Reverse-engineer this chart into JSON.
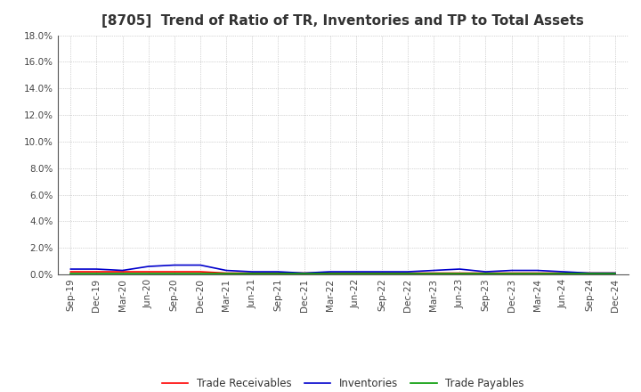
{
  "title": "[8705]  Trend of Ratio of TR, Inventories and TP to Total Assets",
  "x_labels": [
    "Sep-19",
    "Dec-19",
    "Mar-20",
    "Jun-20",
    "Sep-20",
    "Dec-20",
    "Mar-21",
    "Jun-21",
    "Sep-21",
    "Dec-21",
    "Mar-22",
    "Jun-22",
    "Sep-22",
    "Dec-22",
    "Mar-23",
    "Jun-23",
    "Sep-23",
    "Dec-23",
    "Mar-24",
    "Jun-24",
    "Sep-24",
    "Dec-24"
  ],
  "trade_receivables": [
    0.002,
    0.002,
    0.002,
    0.002,
    0.002,
    0.002,
    0.001,
    0.001,
    0.001,
    0.001,
    0.001,
    0.001,
    0.001,
    0.001,
    0.001,
    0.001,
    0.001,
    0.001,
    0.001,
    0.001,
    0.001,
    0.001
  ],
  "inventories": [
    0.004,
    0.004,
    0.003,
    0.006,
    0.007,
    0.007,
    0.003,
    0.002,
    0.002,
    0.001,
    0.002,
    0.002,
    0.002,
    0.002,
    0.003,
    0.004,
    0.002,
    0.003,
    0.003,
    0.002,
    0.001,
    0.001
  ],
  "trade_payables": [
    0.0005,
    0.0005,
    0.0005,
    0.0005,
    0.0005,
    0.0005,
    0.0005,
    0.0005,
    0.0005,
    0.0005,
    0.0005,
    0.0005,
    0.0005,
    0.0005,
    0.0005,
    0.0005,
    0.0005,
    0.0005,
    0.0005,
    0.0005,
    0.0005,
    0.0005
  ],
  "tr_color": "#FF0000",
  "inv_color": "#0000CC",
  "tp_color": "#009900",
  "ylim": [
    0.0,
    0.18
  ],
  "yticks": [
    0.0,
    0.02,
    0.04,
    0.06,
    0.08,
    0.1,
    0.12,
    0.14,
    0.16,
    0.18
  ],
  "ytick_labels": [
    "0.0%",
    "2.0%",
    "4.0%",
    "6.0%",
    "8.0%",
    "10.0%",
    "12.0%",
    "14.0%",
    "16.0%",
    "18.0%"
  ],
  "background_color": "#FFFFFF",
  "grid_color": "#999999",
  "line_width": 1.2,
  "title_fontsize": 11,
  "tick_fontsize": 7.5,
  "legend_labels": [
    "Trade Receivables",
    "Inventories",
    "Trade Payables"
  ]
}
